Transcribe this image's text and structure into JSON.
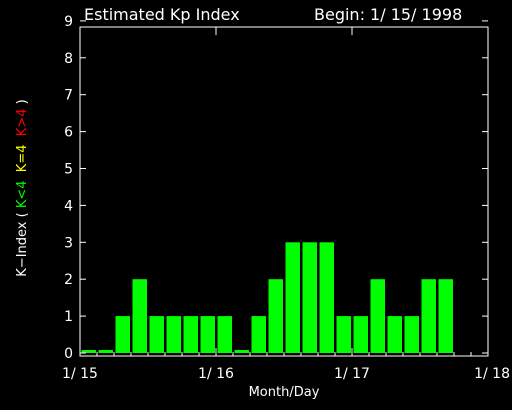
{
  "chart_data": {
    "type": "bar",
    "title": "Estimated Kp Index",
    "begin_label": "Begin: 1/ 15/ 1998",
    "xlabel": "Month/Day",
    "ylabel_parts": [
      {
        "text": "K−Index ( ",
        "color": "#ffffff"
      },
      {
        "text": "K<4",
        "color": "#00ff00"
      },
      {
        "text": "  ",
        "color": "#ffffff"
      },
      {
        "text": "K=4",
        "color": "#ffff00"
      },
      {
        "text": "  ",
        "color": "#ffffff"
      },
      {
        "text": "K>4",
        "color": "#ff0000"
      },
      {
        "text": " )",
        "color": "#ffffff"
      }
    ],
    "ylim": [
      0,
      9
    ],
    "yticks": [
      "0",
      "1",
      "2",
      "3",
      "4",
      "5",
      "6",
      "7",
      "8",
      "9"
    ],
    "xlim": [
      0,
      3
    ],
    "xticks": [
      {
        "value": 0,
        "label": "1/ 15"
      },
      {
        "value": 1,
        "label": "1/ 16"
      },
      {
        "value": 2,
        "label": "1/ 17"
      },
      {
        "value": 3,
        "label": "1/ 18"
      }
    ],
    "bar_width_days": 0.125,
    "values": [
      0,
      0,
      1,
      2,
      1,
      1,
      1,
      1,
      1,
      0,
      1,
      2,
      3,
      3,
      3,
      1,
      1,
      2,
      1,
      1,
      2,
      2
    ],
    "colors": {
      "low": "#00ff00",
      "equal": "#ffff00",
      "high": "#ff0000",
      "axes": "#ffffff",
      "background": "#000000"
    }
  }
}
